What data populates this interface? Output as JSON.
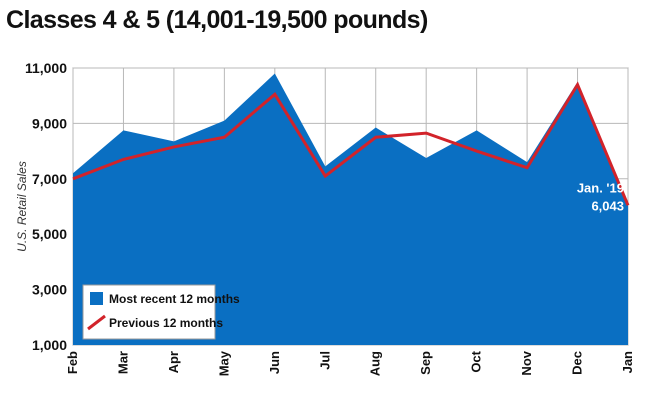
{
  "chart_data": {
    "type": "area",
    "title": "Classes 4 & 5 (14,001-19,500 pounds)",
    "ylabel": "U.S. Retail Sales",
    "xlabel": "",
    "ylim": [
      1000,
      11000
    ],
    "y_ticks": [
      "1,000",
      "3,000",
      "5,000",
      "7,000",
      "9,000",
      "11,000"
    ],
    "y_tick_values": [
      1000,
      3000,
      5000,
      7000,
      9000,
      11000
    ],
    "categories": [
      "Feb",
      "Mar",
      "Apr",
      "May",
      "Jun",
      "Jul",
      "Aug",
      "Sep",
      "Oct",
      "Nov",
      "Dec",
      "Jan"
    ],
    "grid": true,
    "legend_placement": "bottom-left",
    "series": [
      {
        "name": "Most recent 12 months",
        "kind": "area",
        "color": "#0a6fc2",
        "values": [
          7200,
          8750,
          8350,
          9100,
          10800,
          7450,
          8850,
          7750,
          8750,
          7600,
          10500,
          6043
        ]
      },
      {
        "name": "Previous 12 months",
        "kind": "line",
        "color": "#d2232a",
        "values": [
          7000,
          7700,
          8150,
          8500,
          10050,
          7100,
          8500,
          8650,
          8000,
          7400,
          10400,
          6043
        ]
      }
    ],
    "annotation": {
      "line1": "Jan. '19",
      "line2": "6,043"
    }
  }
}
